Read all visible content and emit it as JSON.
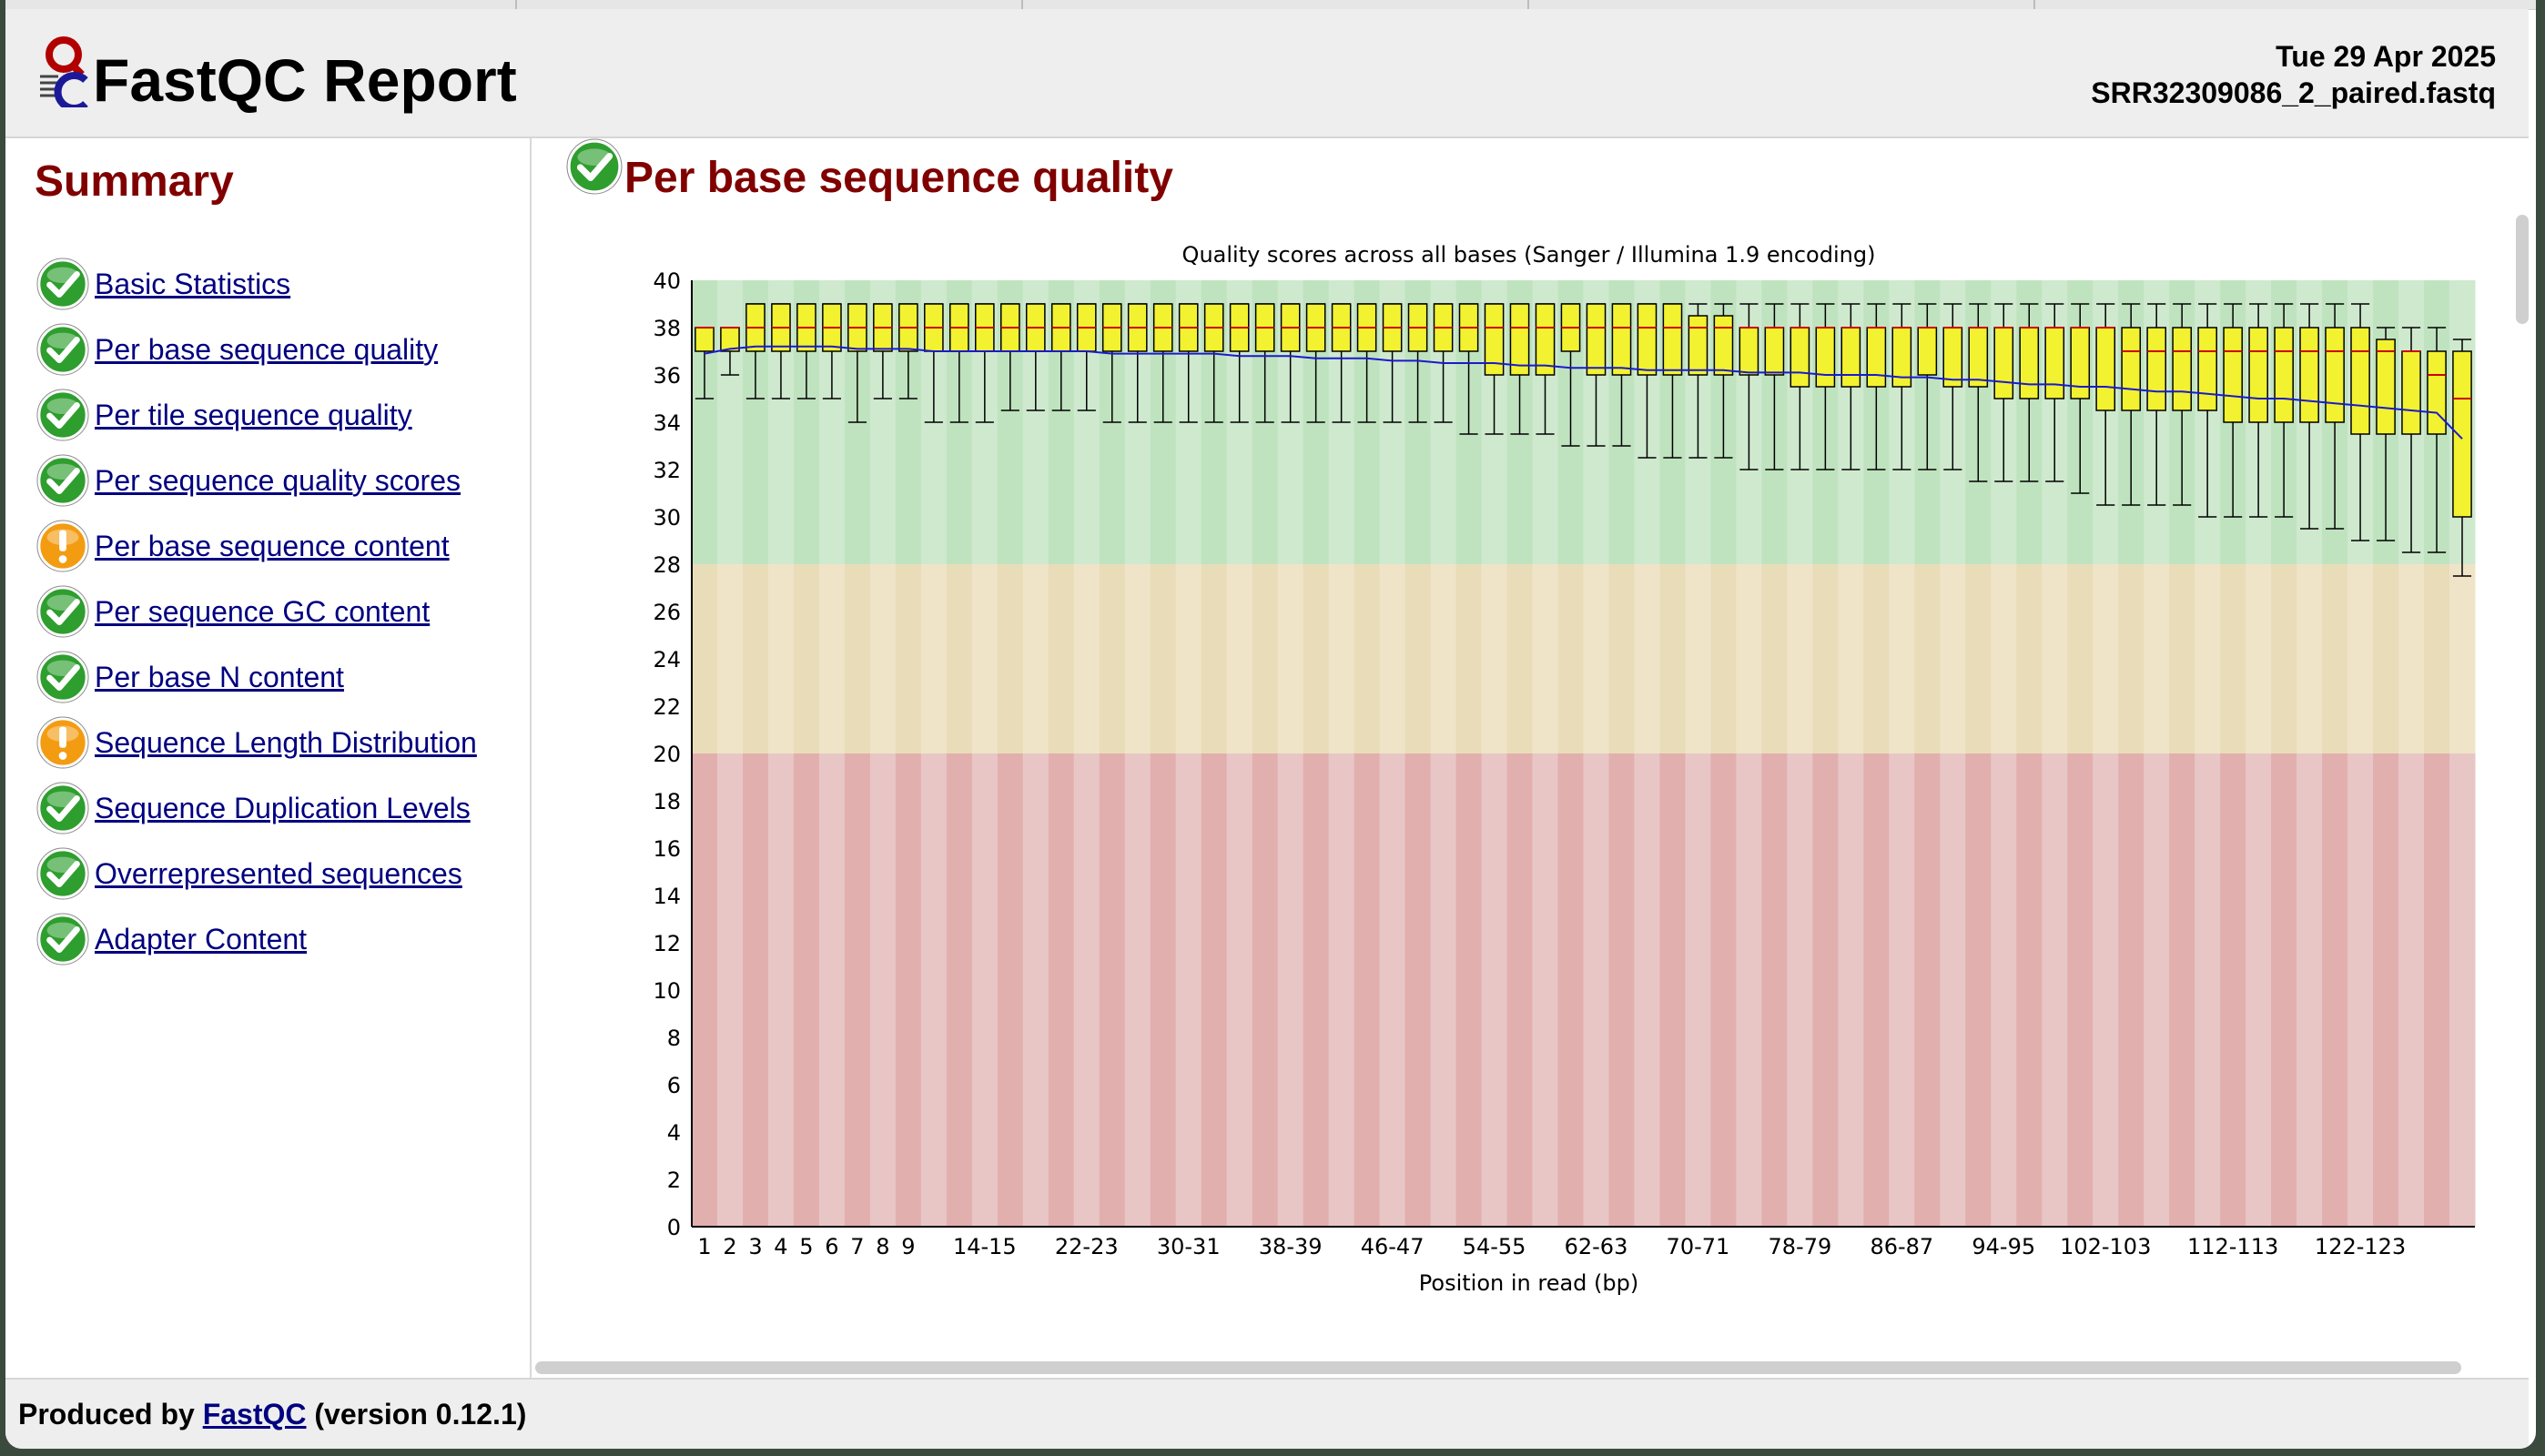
{
  "header": {
    "title": "FastQC Report",
    "date": "Tue 29 Apr 2025",
    "filename": "SRR32309086_2_paired.fastq"
  },
  "summary": {
    "title": "Summary",
    "modules": [
      {
        "label": "Basic Statistics",
        "status": "pass"
      },
      {
        "label": "Per base sequence quality",
        "status": "pass"
      },
      {
        "label": "Per tile sequence quality",
        "status": "pass"
      },
      {
        "label": "Per sequence quality scores",
        "status": "pass"
      },
      {
        "label": "Per base sequence content",
        "status": "warn"
      },
      {
        "label": "Per sequence GC content",
        "status": "pass"
      },
      {
        "label": "Per base N content",
        "status": "pass"
      },
      {
        "label": "Sequence Length Distribution",
        "status": "warn"
      },
      {
        "label": "Sequence Duplication Levels",
        "status": "pass"
      },
      {
        "label": "Overrepresented sequences",
        "status": "pass"
      },
      {
        "label": "Adapter Content",
        "status": "pass"
      }
    ]
  },
  "main": {
    "title": "Per base sequence quality",
    "status": "pass"
  },
  "footer": {
    "prefix": "Produced by",
    "link": "FastQC",
    "suffix": "(version 0.12.1)"
  },
  "colors": {
    "pass": "#2e9e2e",
    "warn": "#f39c12",
    "heading": "#800000",
    "link": "#000080",
    "box_fill": "#f2f230",
    "median": "#cc0000",
    "mean_line": "#1a1acc",
    "zone_good_a": "#bfe3bf",
    "zone_good_b": "#cfe9cf",
    "zone_mid_a": "#e9dcb9",
    "zone_mid_b": "#efe4c8",
    "zone_bad_a": "#e2afaf",
    "zone_bad_b": "#e9c6c6"
  },
  "chart_data": {
    "type": "boxplot",
    "title": "Quality scores across all bases (Sanger / Illumina 1.9 encoding)",
    "xlabel": "Position in read (bp)",
    "ylabel": "",
    "ylim": [
      0,
      40
    ],
    "yticks": [
      0,
      2,
      4,
      6,
      8,
      10,
      12,
      14,
      16,
      18,
      20,
      22,
      24,
      26,
      28,
      30,
      32,
      34,
      36,
      38,
      40
    ],
    "zones": [
      {
        "from": 28,
        "to": 40,
        "quality": "good"
      },
      {
        "from": 20,
        "to": 28,
        "quality": "reasonable"
      },
      {
        "from": 0,
        "to": 20,
        "quality": "poor"
      }
    ],
    "categories": [
      "1",
      "2",
      "3",
      "4",
      "5",
      "6",
      "7",
      "8",
      "9",
      "10-11",
      "12-13",
      "14-15",
      "16-17",
      "18-19",
      "20-21",
      "22-23",
      "24-25",
      "26-27",
      "28-29",
      "30-31",
      "32-33",
      "34-35",
      "36-37",
      "38-39",
      "40-41",
      "42-43",
      "44-45",
      "46-47",
      "48-49",
      "50-51",
      "52-53",
      "54-55",
      "56-57",
      "58-59",
      "60-61",
      "62-63",
      "64-65",
      "66-67",
      "68-69",
      "70-71",
      "72-73",
      "74-75",
      "76-77",
      "78-79",
      "80-81",
      "82-83",
      "84-85",
      "86-87",
      "88-89",
      "90-91",
      "92-93",
      "94-95",
      "96-97",
      "98-99",
      "100-101",
      "102-103",
      "104-105",
      "106-107",
      "108-109",
      "110-111",
      "112-113",
      "114-115",
      "116-117",
      "118-119",
      "120-121",
      "122-123",
      "124-125",
      "126-127",
      "128-129",
      "130"
    ],
    "xtick_labels": [
      "1",
      "2",
      "3",
      "4",
      "5",
      "6",
      "7",
      "8",
      "9",
      "14-15",
      "22-23",
      "30-31",
      "38-39",
      "46-47",
      "54-55",
      "62-63",
      "70-71",
      "78-79",
      "86-87",
      "94-95",
      "102-103",
      "112-113",
      "122-123"
    ],
    "series": [
      {
        "name": "lower_whisker",
        "values": [
          35,
          36,
          35,
          35,
          35,
          35,
          34,
          35,
          35,
          34,
          34,
          34,
          34.5,
          34.5,
          34.5,
          34.5,
          34,
          34,
          34,
          34,
          34,
          34,
          34,
          34,
          34,
          34,
          34,
          34,
          34,
          34,
          33.5,
          33.5,
          33.5,
          33.5,
          33,
          33,
          33,
          32.5,
          32.5,
          32.5,
          32.5,
          32,
          32,
          32,
          32,
          32,
          32,
          32,
          32,
          32,
          31.5,
          31.5,
          31.5,
          31.5,
          31,
          30.5,
          30.5,
          30.5,
          30.5,
          30,
          30,
          30,
          30,
          29.5,
          29.5,
          29,
          29,
          28.5,
          28.5,
          27.5
        ]
      },
      {
        "name": "q1",
        "values": [
          37,
          37,
          37,
          37,
          37,
          37,
          37,
          37,
          37,
          37,
          37,
          37,
          37,
          37,
          37,
          37,
          37,
          37,
          37,
          37,
          37,
          37,
          37,
          37,
          37,
          37,
          37,
          37,
          37,
          37,
          37,
          36,
          36,
          36,
          37,
          36,
          36,
          36,
          36,
          36,
          36,
          36,
          36,
          35.5,
          35.5,
          35.5,
          35.5,
          35.5,
          36,
          35.5,
          35.5,
          35,
          35,
          35,
          35,
          34.5,
          34.5,
          34.5,
          34.5,
          34.5,
          34,
          34,
          34,
          34,
          34,
          33.5,
          33.5,
          33.5,
          33.5,
          30
        ]
      },
      {
        "name": "median",
        "values": [
          38,
          38,
          38,
          38,
          38,
          38,
          38,
          38,
          38,
          38,
          38,
          38,
          38,
          38,
          38,
          38,
          38,
          38,
          38,
          38,
          38,
          38,
          38,
          38,
          38,
          38,
          38,
          38,
          38,
          38,
          38,
          38,
          38,
          38,
          38,
          38,
          38,
          38,
          38,
          38,
          38,
          38,
          38,
          38,
          38,
          38,
          38,
          38,
          38,
          38,
          38,
          38,
          38,
          38,
          38,
          38,
          37,
          37,
          37,
          37,
          37,
          37,
          37,
          37,
          37,
          37,
          37,
          37,
          36,
          35
        ]
      },
      {
        "name": "q3",
        "values": [
          38,
          38,
          39,
          39,
          39,
          39,
          39,
          39,
          39,
          39,
          39,
          39,
          39,
          39,
          39,
          39,
          39,
          39,
          39,
          39,
          39,
          39,
          39,
          39,
          39,
          39,
          39,
          39,
          39,
          39,
          39,
          39,
          39,
          39,
          39,
          39,
          39,
          39,
          39,
          38.5,
          38.5,
          38,
          38,
          38,
          38,
          38,
          38,
          38,
          38,
          38,
          38,
          38,
          38,
          38,
          38,
          38,
          38,
          38,
          38,
          38,
          38,
          38,
          38,
          38,
          38,
          38,
          37.5,
          37,
          37,
          37
        ]
      },
      {
        "name": "upper_whisker",
        "values": [
          38,
          38,
          39,
          39,
          39,
          39,
          39,
          39,
          39,
          39,
          39,
          39,
          39,
          39,
          39,
          39,
          39,
          39,
          39,
          39,
          39,
          39,
          39,
          39,
          39,
          39,
          39,
          39,
          39,
          39,
          39,
          39,
          39,
          39,
          39,
          39,
          39,
          39,
          39,
          39,
          39,
          39,
          39,
          39,
          39,
          39,
          39,
          39,
          39,
          39,
          39,
          39,
          39,
          39,
          39,
          39,
          39,
          39,
          39,
          39,
          39,
          39,
          39,
          39,
          39,
          39,
          38,
          38,
          38,
          37.5
        ]
      },
      {
        "name": "mean",
        "values": [
          36.9,
          37.1,
          37.2,
          37.2,
          37.2,
          37.2,
          37.1,
          37.1,
          37.1,
          37.0,
          37.0,
          37.0,
          37.0,
          37.0,
          37.0,
          37.0,
          36.9,
          36.9,
          36.9,
          36.9,
          36.9,
          36.8,
          36.8,
          36.8,
          36.7,
          36.7,
          36.7,
          36.6,
          36.6,
          36.5,
          36.5,
          36.5,
          36.4,
          36.4,
          36.3,
          36.3,
          36.3,
          36.2,
          36.2,
          36.2,
          36.2,
          36.1,
          36.1,
          36.1,
          36.0,
          36.0,
          36.0,
          35.9,
          35.9,
          35.8,
          35.8,
          35.7,
          35.6,
          35.6,
          35.5,
          35.5,
          35.4,
          35.3,
          35.3,
          35.2,
          35.1,
          35.0,
          35.0,
          34.9,
          34.8,
          34.7,
          34.6,
          34.5,
          34.4,
          33.3
        ]
      }
    ]
  }
}
